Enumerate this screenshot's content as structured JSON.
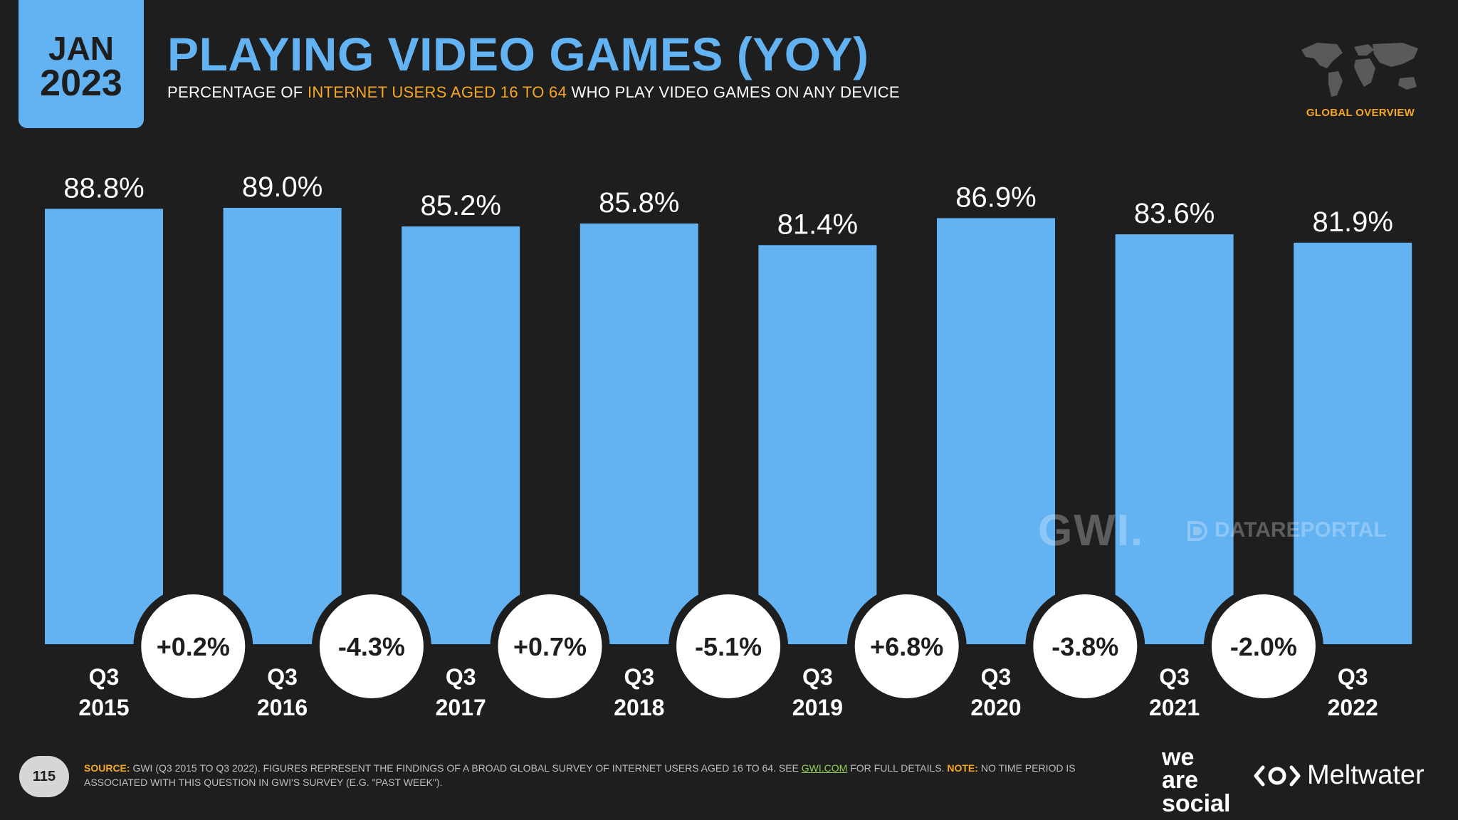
{
  "badge": {
    "month": "JAN",
    "year": "2023"
  },
  "header": {
    "title": "PLAYING VIDEO GAMES (YOY)",
    "subtitle_pre": "PERCENTAGE OF ",
    "subtitle_highlight": "INTERNET USERS AGED 16 TO 64",
    "subtitle_post": " WHO PLAY VIDEO GAMES ON ANY DEVICE",
    "region": "GLOBAL OVERVIEW"
  },
  "watermarks": {
    "gwi": "GWI.",
    "datareportal": "DATAREPORTAL"
  },
  "chart_data": {
    "type": "bar",
    "title": "PLAYING VIDEO GAMES (YOY)",
    "categories": [
      [
        "Q3",
        "2015"
      ],
      [
        "Q3",
        "2016"
      ],
      [
        "Q3",
        "2017"
      ],
      [
        "Q3",
        "2018"
      ],
      [
        "Q3",
        "2019"
      ],
      [
        "Q3",
        "2020"
      ],
      [
        "Q3",
        "2021"
      ],
      [
        "Q3",
        "2022"
      ]
    ],
    "values": [
      88.8,
      89.0,
      85.2,
      85.8,
      81.4,
      86.9,
      83.6,
      81.9
    ],
    "value_labels": [
      "88.8%",
      "89.0%",
      "85.2%",
      "85.8%",
      "81.4%",
      "86.9%",
      "83.6%",
      "81.9%"
    ],
    "changes": [
      "+0.2%",
      "-4.3%",
      "+0.7%",
      "-5.1%",
      "+6.8%",
      "-3.8%",
      "-2.0%"
    ],
    "ylim": [
      0,
      89.0
    ],
    "xlabel": "",
    "ylabel": "",
    "bar_color": "#63b2f2",
    "background": "#1e1e1e"
  },
  "footer": {
    "page": "115",
    "source_label": "SOURCE:",
    "source_text": " GWI (Q3 2015 TO Q3 2022). FIGURES REPRESENT THE FINDINGS OF A BROAD GLOBAL SURVEY OF INTERNET USERS AGED 16 TO 64. SEE ",
    "source_link": "GWI.COM",
    "source_after": " FOR FULL DETAILS. ",
    "note_label": "NOTE:",
    "note_text": " NO TIME PERIOD IS ASSOCIATED WITH THIS QUESTION IN GWI'S SURVEY (E.G. \"PAST WEEK\")."
  },
  "logos": {
    "was_line1": "we",
    "was_line2": "are",
    "was_line3": "social",
    "meltwater": "Meltwater"
  },
  "colors": {
    "accent": "#63b2f2",
    "highlight": "#f5a623",
    "link": "#8fd14f"
  }
}
